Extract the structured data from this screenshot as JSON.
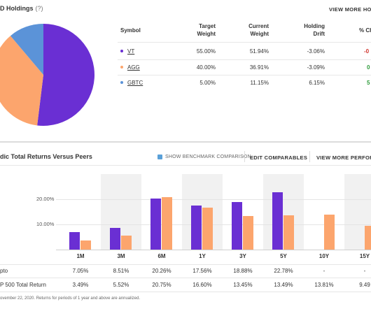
{
  "holdings": {
    "title": "D Holdings",
    "help": "(?)",
    "view_more": "VIEW MORE HOL",
    "columns": {
      "symbol": "Symbol",
      "target": [
        "Target",
        "Weight"
      ],
      "current": [
        "Current",
        "Weight"
      ],
      "drift": [
        "Holding",
        "Drift"
      ],
      "change": "% Ch"
    },
    "rows": [
      {
        "symbol": "VT",
        "color": "#6a2fd3",
        "target": "55.00%",
        "current": "51.94%",
        "drift": "-3.06%",
        "change": "-0",
        "change_color": "#d0342c"
      },
      {
        "symbol": "AGG",
        "color": "#fca56d",
        "target": "40.00%",
        "current": "36.91%",
        "drift": "-3.09%",
        "change": "0",
        "change_color": "#2e9b3b"
      },
      {
        "symbol": "GBTC",
        "color": "#5b93d8",
        "target": "5.00%",
        "current": "11.15%",
        "drift": "6.15%",
        "change": "5",
        "change_color": "#2e9b3b"
      }
    ]
  },
  "returns": {
    "title": "dic Total Returns Versus Peers",
    "show_benchmark": "SHOW BENCHMARK COMPARISON",
    "edit_comparables": "EDIT COMPARABLES",
    "view_more": "VIEW MORE PERFORM",
    "footnote": "ovember 22, 2020. Returns for periods of 1 year and above are annualized."
  },
  "chart_data": {
    "type": "bar",
    "categories": [
      "1M",
      "3M",
      "6M",
      "1Y",
      "3Y",
      "5Y",
      "10Y",
      "15Y"
    ],
    "ylim": [
      0,
      30
    ],
    "yticks": [
      "10.00%",
      "20.00%"
    ],
    "ytick_values": [
      10,
      20
    ],
    "series": [
      {
        "name": "pto",
        "color": "#6a2fd3",
        "values": [
          7.05,
          8.51,
          20.26,
          17.56,
          18.88,
          22.78,
          null,
          null
        ],
        "labels": [
          "7.05%",
          "8.51%",
          "20.26%",
          "17.56%",
          "18.88%",
          "22.78%",
          "-",
          "-"
        ]
      },
      {
        "name": "P 500 Total Return",
        "color": "#fca56d",
        "values": [
          3.49,
          5.52,
          20.75,
          16.6,
          13.45,
          13.49,
          13.81,
          9.49
        ],
        "labels": [
          "3.49%",
          "5.52%",
          "20.75%",
          "16.60%",
          "13.45%",
          "13.49%",
          "13.81%",
          "9.49"
        ]
      }
    ]
  }
}
